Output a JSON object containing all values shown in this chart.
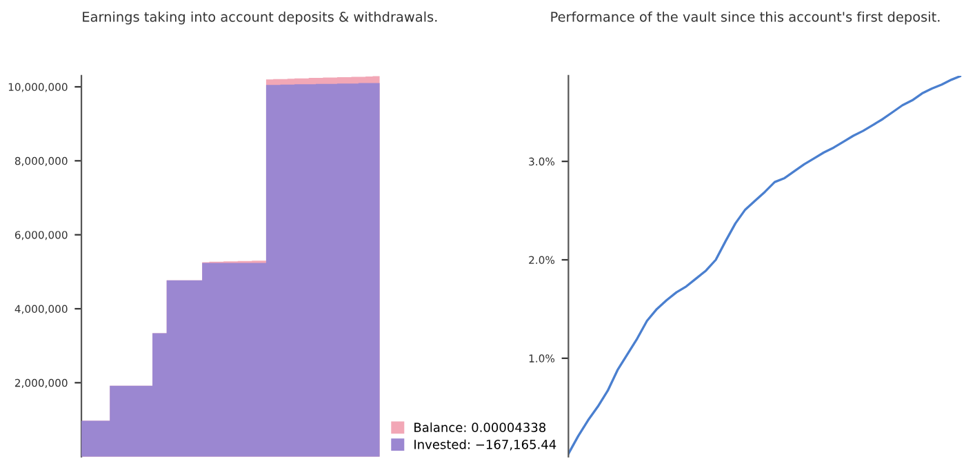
{
  "chart_data": [
    {
      "type": "area",
      "title": "Earnings taking into account deposits & withdrawals.",
      "categories": [
        null,
        null,
        null,
        null,
        null,
        null,
        null,
        null,
        null,
        null,
        null,
        null,
        null,
        null,
        null,
        null,
        null,
        null,
        null,
        null,
        null,
        null,
        null,
        null,
        null,
        null,
        null,
        null,
        null,
        null,
        null,
        null,
        null,
        null,
        null,
        null,
        null,
        null,
        null,
        null,
        null,
        null,
        null
      ],
      "series": [
        {
          "name": "Balance: 0.00004338",
          "color": "#f2a7b6",
          "values": [
            970000,
            970000,
            970000,
            970000,
            1920000,
            1920000,
            1920000,
            1920000,
            1920000,
            1920000,
            3340000,
            3340000,
            4770000,
            4770000,
            4770000,
            4770000,
            4770000,
            5260000,
            5270000,
            5270000,
            5280000,
            5280000,
            5290000,
            5290000,
            5300000,
            5300000,
            10200000,
            10210000,
            10210000,
            10220000,
            10230000,
            10230000,
            10240000,
            10240000,
            10250000,
            10250000,
            10260000,
            10260000,
            10270000,
            10270000,
            10280000,
            10290000,
            10290000
          ]
        },
        {
          "name": "Invested: −167,165.44",
          "color": "#9b87d1",
          "values": [
            970000,
            970000,
            970000,
            970000,
            1920000,
            1920000,
            1920000,
            1920000,
            1920000,
            1920000,
            3340000,
            3340000,
            4770000,
            4770000,
            4770000,
            4770000,
            4770000,
            5240000,
            5240000,
            5240000,
            5240000,
            5240000,
            5240000,
            5240000,
            5240000,
            5240000,
            10050000,
            10050000,
            10060000,
            10060000,
            10070000,
            10070000,
            10070000,
            10080000,
            10080000,
            10080000,
            10090000,
            10090000,
            10090000,
            10100000,
            10100000,
            10100000,
            10100000
          ]
        }
      ],
      "ylim": [
        0,
        10300000
      ],
      "yticks": [
        {
          "value": 2000000,
          "label": "2,000,000"
        },
        {
          "value": 4000000,
          "label": "4,000,000"
        },
        {
          "value": 6000000,
          "label": "6,000,000"
        },
        {
          "value": 8000000,
          "label": "8,000,000"
        },
        {
          "value": 10000000,
          "label": "10,000,000"
        }
      ],
      "tick_labels": "y",
      "legend": "bottom right",
      "grid": false
    },
    {
      "type": "line",
      "title": "Performance of the vault since this account's first deposit.",
      "categories": [
        null,
        null,
        null,
        null,
        null,
        null,
        null,
        null,
        null,
        null,
        null,
        null,
        null,
        null,
        null,
        null,
        null,
        null,
        null,
        null,
        null,
        null,
        null,
        null,
        null,
        null,
        null,
        null,
        null,
        null,
        null,
        null,
        null,
        null,
        null,
        null,
        null,
        null,
        null,
        null,
        null
      ],
      "series": [
        {
          "color": "#4a7fcf",
          "values": [
            0.03,
            0.21,
            0.37,
            0.51,
            0.67,
            0.88,
            1.04,
            1.2,
            1.38,
            1.5,
            1.59,
            1.67,
            1.73,
            1.81,
            1.89,
            2.0,
            2.19,
            2.37,
            2.51,
            2.6,
            2.69,
            2.79,
            2.83,
            2.9,
            2.97,
            3.03,
            3.09,
            3.14,
            3.2,
            3.26,
            3.31,
            3.37,
            3.43,
            3.5,
            3.57,
            3.62,
            3.69,
            3.74,
            3.78,
            3.83,
            3.87
          ]
        }
      ],
      "ylim": [
        0,
        3.87
      ],
      "yticks": [
        {
          "value": 1,
          "label": "1.0%"
        },
        {
          "value": 2,
          "label": "2.0%"
        },
        {
          "value": 3,
          "label": "3.0%"
        }
      ],
      "tick_labels": "y",
      "legend": false,
      "grid": false,
      "marker": "none",
      "line_style": "solid"
    }
  ]
}
